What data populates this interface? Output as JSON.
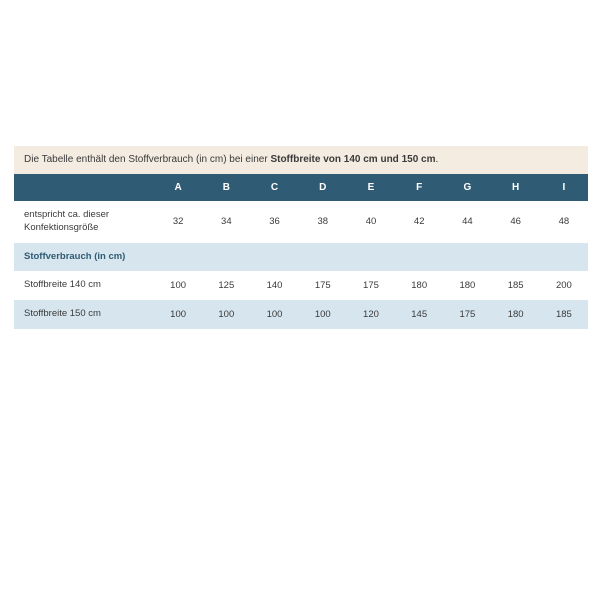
{
  "intro": {
    "prefix": "Die Tabelle enthält den Stoffverbrauch (in cm) bei einer ",
    "bold": "Stoffbreite von 140 cm und 150 cm",
    "suffix": "."
  },
  "colors": {
    "header_bg": "#2f5b74",
    "header_text": "#ffffff",
    "row_alt_bg": "#d6e5ee",
    "intro_bg": "#f4ece1",
    "text": "#3a3a3a",
    "section_text": "#2f5b74"
  },
  "table": {
    "columns": [
      "",
      "A",
      "B",
      "C",
      "D",
      "E",
      "F",
      "G",
      "H",
      "I"
    ],
    "rows": [
      {
        "label": "entspricht ca. dieser Konfektionsgröße",
        "values": [
          "32",
          "34",
          "36",
          "38",
          "40",
          "42",
          "44",
          "46",
          "48"
        ],
        "alt": false,
        "section": false
      },
      {
        "label": "Stoffverbrauch (in cm)",
        "values": [
          "",
          "",
          "",
          "",
          "",
          "",
          "",
          "",
          ""
        ],
        "alt": true,
        "section": true
      },
      {
        "label": "Stoffbreite 140 cm",
        "values": [
          "100",
          "125",
          "140",
          "175",
          "175",
          "180",
          "180",
          "185",
          "200"
        ],
        "alt": false,
        "section": false
      },
      {
        "label": "Stoffbreite 150 cm",
        "values": [
          "100",
          "100",
          "100",
          "100",
          "120",
          "145",
          "175",
          "180",
          "185"
        ],
        "alt": true,
        "section": false
      }
    ]
  }
}
